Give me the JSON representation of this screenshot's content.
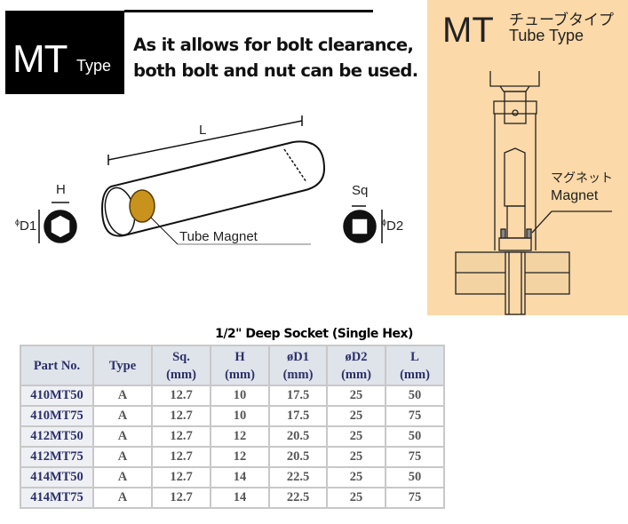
{
  "badge": {
    "main": "MT",
    "sub": "Type"
  },
  "description": [
    "As it allows for bolt clearance,",
    "both bolt and nut can be used."
  ],
  "diagram": {
    "length_label": "L",
    "hex_label": "H",
    "d1_label": "D1",
    "sq_label": "Sq",
    "d2_label": "D2",
    "magnet_label": "Tube Magnet",
    "phi": "ϕ"
  },
  "panel": {
    "main": "MT",
    "jp": "チューブタイプ",
    "en": "Tube Type",
    "magnet_jp": "マグネット",
    "magnet_en": "Magnet",
    "bg": "#fcd9a8"
  },
  "table": {
    "title": "1/2\" Deep Socket (Single Hex)",
    "headers": [
      [
        "Part No.",
        ""
      ],
      [
        "Type",
        ""
      ],
      [
        "Sq.",
        "(mm)"
      ],
      [
        "H",
        "(mm)"
      ],
      [
        "øD1",
        "(mm)"
      ],
      [
        "øD2",
        "(mm)"
      ],
      [
        "L",
        "(mm)"
      ]
    ],
    "rows": [
      [
        "410MT50",
        "A",
        "12.7",
        "10",
        "17.5",
        "25",
        "50"
      ],
      [
        "410MT75",
        "A",
        "12.7",
        "10",
        "17.5",
        "25",
        "75"
      ],
      [
        "412MT50",
        "A",
        "12.7",
        "12",
        "20.5",
        "25",
        "50"
      ],
      [
        "412MT75",
        "A",
        "12.7",
        "12",
        "20.5",
        "25",
        "75"
      ],
      [
        "414MT50",
        "A",
        "12.7",
        "14",
        "22.5",
        "25",
        "50"
      ],
      [
        "414MT75",
        "A",
        "12.7",
        "14",
        "22.5",
        "25",
        "75"
      ]
    ]
  }
}
